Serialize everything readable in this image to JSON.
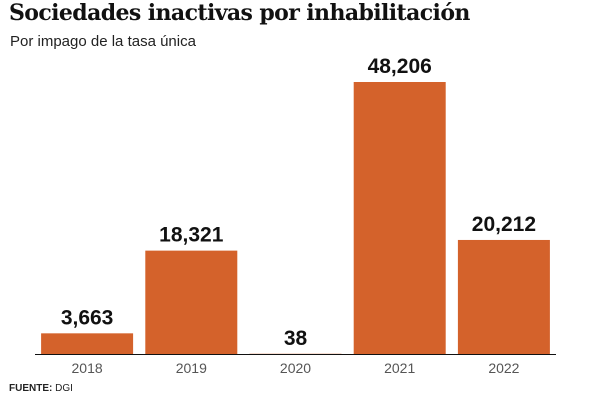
{
  "title": "Sociedades inactivas por inhabilitación",
  "subtitle": "Por impago de la tasa única",
  "source": {
    "label": "FUENTE:",
    "value": "DGI"
  },
  "colors": {
    "bar": "#D4622B",
    "axis": "#111111",
    "tick": "#555555",
    "value_label": "#111111"
  },
  "chart_data": {
    "type": "bar",
    "title": "Sociedades inactivas por inhabilitación",
    "subtitle": "Por impago de la tasa única",
    "categories": [
      "2018",
      "2019",
      "2020",
      "2021",
      "2022"
    ],
    "values": [
      3663,
      18321,
      38,
      48206,
      20212
    ],
    "value_labels": [
      "3,663",
      "18,321",
      "38",
      "48,206",
      "20,212"
    ],
    "xlabel": "",
    "ylabel": "",
    "ylim": [
      0,
      50000
    ],
    "grid": false,
    "legend": "none"
  }
}
